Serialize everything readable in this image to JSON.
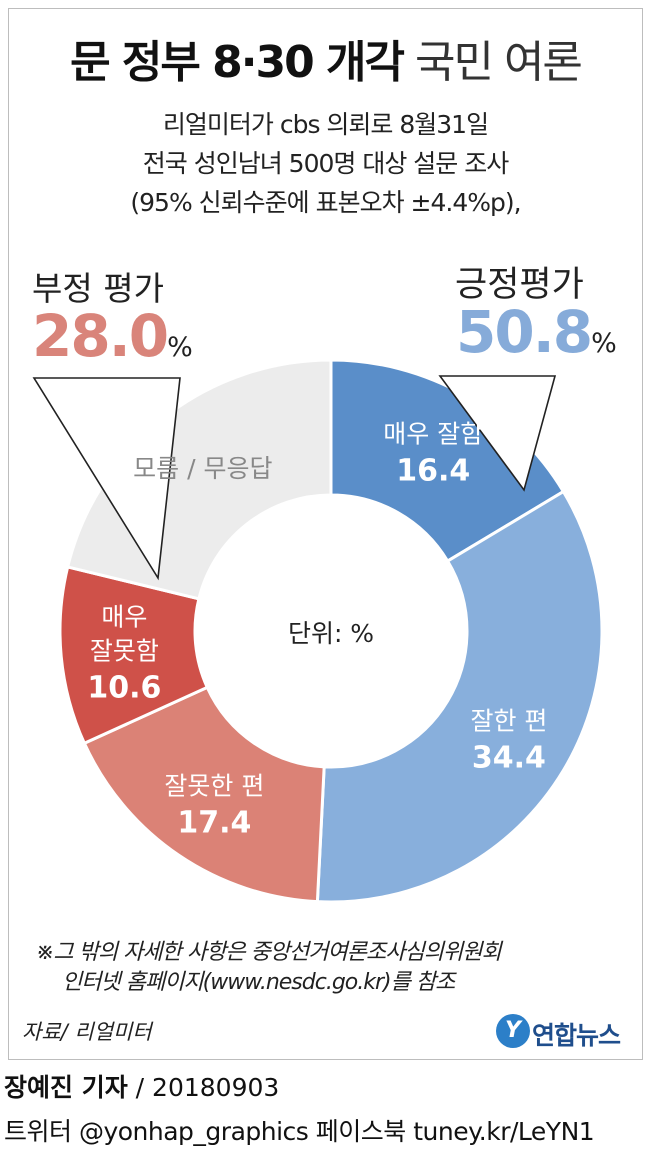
{
  "title": {
    "bold": "문 정부 8·30 개각",
    "light": "국민 여론"
  },
  "subtitle_lines": [
    "리얼미터가 cbs 의뢰로 8월31일",
    "전국 성인남녀 500명 대상 설문 조사",
    "(95% 신뢰수준에 표본오차 ±4.4%p),"
  ],
  "negative_summary": {
    "label": "부정 평가",
    "value": "28.0",
    "unit": "%",
    "color": "#d9847a"
  },
  "positive_summary": {
    "label": "긍정평가",
    "value": "50.8",
    "unit": "%",
    "color": "#86abd9"
  },
  "chart_data": {
    "type": "pie",
    "style": "donut",
    "center_label": "단위: %",
    "slices": [
      {
        "name": "매우 잘함",
        "value": 16.4,
        "display": "16.4",
        "color": "#5a8ec9",
        "label_color": "#ffffff"
      },
      {
        "name": "잘한 편",
        "value": 34.4,
        "display": "34.4",
        "color": "#88afdc",
        "label_color": "#ffffff"
      },
      {
        "name": "잘못한 편",
        "value": 17.4,
        "display": "17.4",
        "color": "#db8276",
        "label_color": "#ffffff"
      },
      {
        "name": "매우 잘못함",
        "name_lines": [
          "매우",
          "잘못함"
        ],
        "value": 10.6,
        "display": "10.6",
        "color": "#cf5149",
        "label_color": "#ffffff"
      },
      {
        "name": "모름 / 무응답",
        "value": 21.2,
        "display": "",
        "color": "#ececec",
        "label_color": "#888888"
      }
    ]
  },
  "note_lines": [
    "※그 밖의 자세한 사항은 중앙선거여론조사심의위원회",
    "인터넷 홈페이지(www.nesdc.go.kr)를 참조"
  ],
  "source": "자료/ 리얼미터",
  "logo": {
    "mark": "Y",
    "text": "연합뉴스"
  },
  "byline": {
    "name": "장예진 기자",
    "date": "/ 20180903"
  },
  "social": "트위터 @yonhap_graphics  페이스북 tuney.kr/LeYN1"
}
